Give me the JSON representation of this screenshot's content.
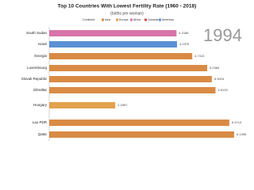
{
  "chart_data": {
    "type": "bar",
    "orientation": "horizontal",
    "title": "Top 10 Countries With Lowest Fertility Rate (1960 - 2018)",
    "subtitle": "(births per woman)",
    "year": "1994",
    "legend_title": "Continent",
    "legend": [
      {
        "name": "Asia",
        "color": "#d98b45"
      },
      {
        "name": "Europe",
        "color": "#e2a24e"
      },
      {
        "name": "Africa",
        "color": "#d874aa"
      },
      {
        "name": "Oceania",
        "color": "#c94a4a"
      },
      {
        "name": "Americas",
        "color": "#5b8fd4"
      }
    ],
    "categories": [
      "South Sudan",
      "Israel",
      "Georgia",
      "Luxembourg",
      "Slovak Republic",
      "Gibraltar",
      null,
      "Hungary",
      "Lao PDR",
      "Qatar"
    ],
    "values": [
      4.2186,
      4.2375,
      4.7413,
      5.2384,
      5.3916,
      5.5133,
      null,
      2.1897,
      5.9713,
      6.1306
    ],
    "colors": [
      "#d874aa",
      "#5b8fd4",
      "#d98b45",
      "#d98b45",
      "#d98b45",
      "#d98b45",
      null,
      "#e2a24e",
      "#d98b45",
      "#d98b45"
    ]
  }
}
